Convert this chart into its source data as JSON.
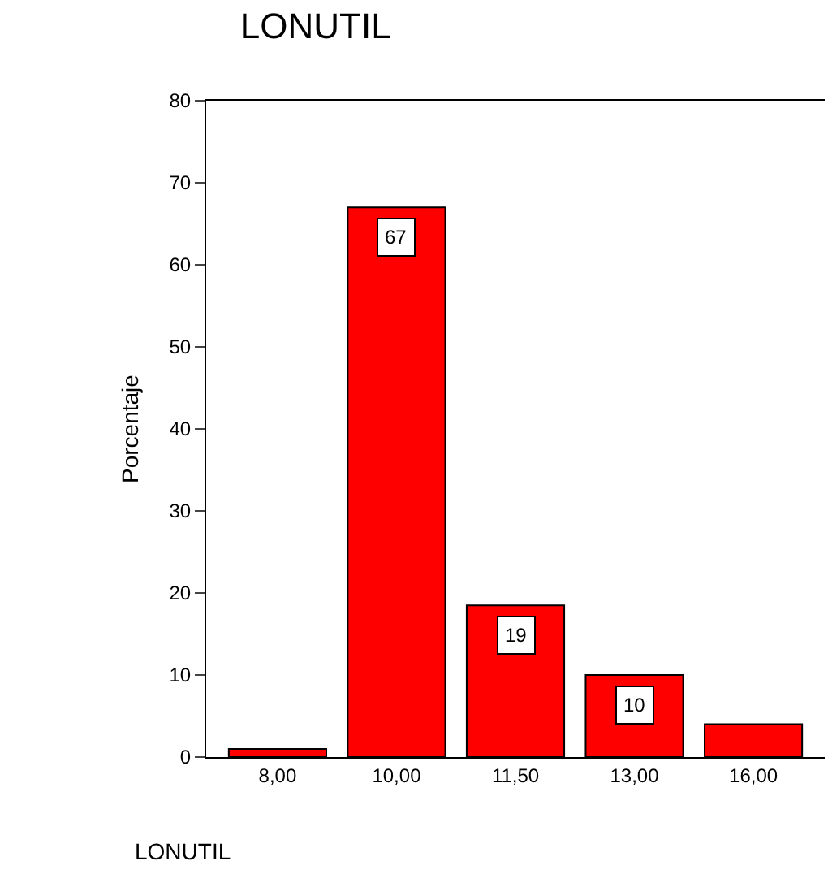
{
  "chart_data": {
    "type": "bar",
    "title": "LONUTIL",
    "xlabel": "LONUTIL",
    "ylabel": "Porcentaje",
    "categories": [
      "8,00",
      "10,00",
      "11,50",
      "13,00",
      "16,00"
    ],
    "values": [
      1,
      67,
      18.5,
      10,
      4
    ],
    "value_labels": [
      null,
      "67",
      "19",
      "10",
      null
    ],
    "color": "#ff0000",
    "ylim": [
      0,
      80
    ],
    "yticks": [
      0,
      10,
      20,
      30,
      40,
      50,
      60,
      70,
      80
    ],
    "legend": false
  }
}
